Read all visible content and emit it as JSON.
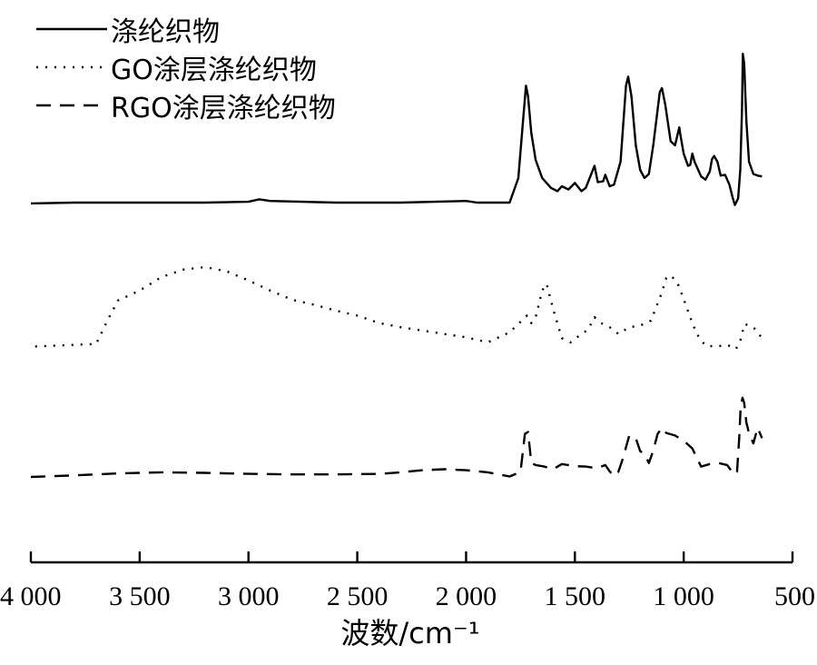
{
  "chart_data": {
    "type": "line",
    "xlabel": "波数/cm⁻¹",
    "ylabel": "",
    "xlim": [
      4000,
      500
    ],
    "x_reversed": true,
    "xticks": [
      {
        "value": 4000,
        "label": "4 000"
      },
      {
        "value": 3500,
        "label": "3 500"
      },
      {
        "value": 3000,
        "label": "3 000"
      },
      {
        "value": 2500,
        "label": "2 500"
      },
      {
        "value": 2000,
        "label": "2 000"
      },
      {
        "value": 1500,
        "label": "1 500"
      },
      {
        "value": 1000,
        "label": "1 000"
      },
      {
        "value": 500,
        "label": "500"
      }
    ],
    "legend": {
      "placement": "top-left",
      "entries": [
        "涤纶织物",
        "GO涂层涤纶织物",
        "RGO涂层涤纶织物"
      ]
    },
    "grid": false,
    "series": [
      {
        "name": "涤纶织物",
        "style": "solid",
        "points": [
          [
            4000,
            0.09
          ],
          [
            3800,
            0.1
          ],
          [
            3500,
            0.1
          ],
          [
            3200,
            0.1
          ],
          [
            3000,
            0.11
          ],
          [
            2950,
            0.14
          ],
          [
            2900,
            0.12
          ],
          [
            2600,
            0.1
          ],
          [
            2300,
            0.1
          ],
          [
            2000,
            0.12
          ],
          [
            1950,
            0.1
          ],
          [
            1800,
            0.1
          ],
          [
            1760,
            0.4
          ],
          [
            1740,
            1.05
          ],
          [
            1725,
            1.53
          ],
          [
            1715,
            1.4
          ],
          [
            1700,
            0.95
          ],
          [
            1680,
            0.62
          ],
          [
            1650,
            0.4
          ],
          [
            1610,
            0.28
          ],
          [
            1580,
            0.24
          ],
          [
            1560,
            0.3
          ],
          [
            1530,
            0.26
          ],
          [
            1500,
            0.34
          ],
          [
            1470,
            0.24
          ],
          [
            1450,
            0.28
          ],
          [
            1410,
            0.55
          ],
          [
            1395,
            0.35
          ],
          [
            1370,
            0.36
          ],
          [
            1360,
            0.44
          ],
          [
            1340,
            0.3
          ],
          [
            1320,
            0.32
          ],
          [
            1290,
            0.6
          ],
          [
            1265,
            1.53
          ],
          [
            1255,
            1.64
          ],
          [
            1240,
            1.4
          ],
          [
            1220,
            0.8
          ],
          [
            1200,
            0.5
          ],
          [
            1180,
            0.4
          ],
          [
            1160,
            0.45
          ],
          [
            1140,
            0.8
          ],
          [
            1110,
            1.45
          ],
          [
            1100,
            1.5
          ],
          [
            1085,
            1.3
          ],
          [
            1060,
            0.85
          ],
          [
            1040,
            0.8
          ],
          [
            1020,
            1.02
          ],
          [
            1015,
            0.93
          ],
          [
            1000,
            0.7
          ],
          [
            980,
            0.55
          ],
          [
            970,
            0.56
          ],
          [
            960,
            0.7
          ],
          [
            950,
            0.6
          ],
          [
            920,
            0.42
          ],
          [
            900,
            0.38
          ],
          [
            880,
            0.48
          ],
          [
            870,
            0.63
          ],
          [
            860,
            0.67
          ],
          [
            845,
            0.6
          ],
          [
            830,
            0.43
          ],
          [
            810,
            0.44
          ],
          [
            790,
            0.32
          ],
          [
            775,
            0.16
          ],
          [
            765,
            0.07
          ],
          [
            750,
            0.15
          ],
          [
            740,
            0.5
          ],
          [
            732,
            1.25
          ],
          [
            728,
            1.92
          ],
          [
            722,
            1.8
          ],
          [
            712,
            1.1
          ],
          [
            700,
            0.6
          ],
          [
            680,
            0.45
          ],
          [
            660,
            0.43
          ],
          [
            640,
            0.42
          ]
        ]
      },
      {
        "name": "GO涂层涤纶织物",
        "style": "dotted",
        "points": [
          [
            3980,
            0.05
          ],
          [
            3800,
            0.07
          ],
          [
            3700,
            0.08
          ],
          [
            3650,
            0.35
          ],
          [
            3600,
            0.6
          ],
          [
            3500,
            0.72
          ],
          [
            3400,
            0.88
          ],
          [
            3300,
            0.97
          ],
          [
            3200,
            1.0
          ],
          [
            3100,
            0.95
          ],
          [
            3000,
            0.84
          ],
          [
            2900,
            0.72
          ],
          [
            2800,
            0.61
          ],
          [
            2700,
            0.55
          ],
          [
            2600,
            0.48
          ],
          [
            2500,
            0.42
          ],
          [
            2400,
            0.33
          ],
          [
            2300,
            0.28
          ],
          [
            2200,
            0.24
          ],
          [
            2100,
            0.2
          ],
          [
            2000,
            0.16
          ],
          [
            1900,
            0.1
          ],
          [
            1800,
            0.22
          ],
          [
            1720,
            0.42
          ],
          [
            1700,
            0.33
          ],
          [
            1680,
            0.4
          ],
          [
            1650,
            0.72
          ],
          [
            1630,
            0.8
          ],
          [
            1600,
            0.5
          ],
          [
            1560,
            0.15
          ],
          [
            1520,
            0.1
          ],
          [
            1480,
            0.18
          ],
          [
            1440,
            0.25
          ],
          [
            1410,
            0.4
          ],
          [
            1380,
            0.33
          ],
          [
            1340,
            0.28
          ],
          [
            1300,
            0.2
          ],
          [
            1250,
            0.28
          ],
          [
            1200,
            0.3
          ],
          [
            1150,
            0.36
          ],
          [
            1100,
            0.7
          ],
          [
            1080,
            0.87
          ],
          [
            1060,
            0.9
          ],
          [
            1030,
            0.82
          ],
          [
            1000,
            0.62
          ],
          [
            970,
            0.4
          ],
          [
            940,
            0.2
          ],
          [
            900,
            0.06
          ],
          [
            850,
            0.05
          ],
          [
            800,
            0.07
          ],
          [
            760,
            0.02
          ],
          [
            740,
            0.12
          ],
          [
            720,
            0.32
          ],
          [
            700,
            0.3
          ],
          [
            680,
            0.28
          ],
          [
            660,
            0.22
          ],
          [
            640,
            0.15
          ]
        ]
      },
      {
        "name": "RGO涂层涤纶织物",
        "style": "dashed",
        "points": [
          [
            4000,
            0.35
          ],
          [
            3800,
            0.38
          ],
          [
            3600,
            0.42
          ],
          [
            3400,
            0.44
          ],
          [
            3200,
            0.43
          ],
          [
            3000,
            0.41
          ],
          [
            2800,
            0.4
          ],
          [
            2600,
            0.4
          ],
          [
            2400,
            0.41
          ],
          [
            2300,
            0.44
          ],
          [
            2200,
            0.48
          ],
          [
            2100,
            0.5
          ],
          [
            2000,
            0.48
          ],
          [
            1900,
            0.44
          ],
          [
            1800,
            0.36
          ],
          [
            1750,
            0.45
          ],
          [
            1730,
            1.18
          ],
          [
            1715,
            1.22
          ],
          [
            1700,
            0.62
          ],
          [
            1680,
            0.58
          ],
          [
            1640,
            0.55
          ],
          [
            1600,
            0.5
          ],
          [
            1560,
            0.6
          ],
          [
            1500,
            0.56
          ],
          [
            1450,
            0.55
          ],
          [
            1400,
            0.52
          ],
          [
            1360,
            0.58
          ],
          [
            1340,
            0.46
          ],
          [
            1320,
            0.37
          ],
          [
            1300,
            0.45
          ],
          [
            1280,
            0.7
          ],
          [
            1250,
            1.15
          ],
          [
            1220,
            1.1
          ],
          [
            1200,
            0.85
          ],
          [
            1180,
            0.8
          ],
          [
            1160,
            0.62
          ],
          [
            1140,
            0.86
          ],
          [
            1120,
            1.18
          ],
          [
            1100,
            1.3
          ],
          [
            1080,
            1.2
          ],
          [
            1040,
            1.15
          ],
          [
            1000,
            1.05
          ],
          [
            960,
            0.9
          ],
          [
            920,
            0.55
          ],
          [
            880,
            0.6
          ],
          [
            840,
            0.62
          ],
          [
            800,
            0.58
          ],
          [
            770,
            0.4
          ],
          [
            755,
            0.45
          ],
          [
            745,
            1.1
          ],
          [
            738,
            1.7
          ],
          [
            730,
            1.88
          ],
          [
            722,
            1.78
          ],
          [
            712,
            1.4
          ],
          [
            700,
            1.2
          ],
          [
            690,
            1.1
          ],
          [
            680,
            1.0
          ],
          [
            660,
            1.3
          ],
          [
            640,
            1.1
          ]
        ]
      }
    ]
  }
}
